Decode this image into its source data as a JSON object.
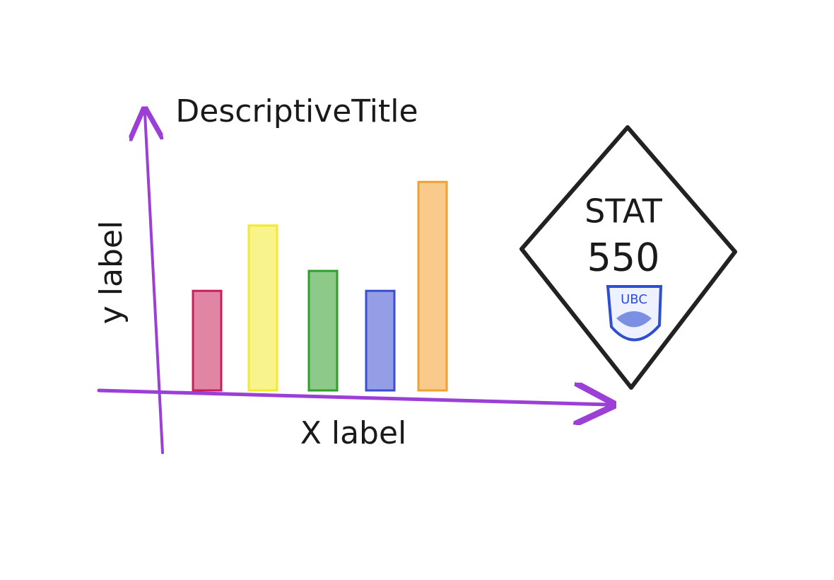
{
  "chart_data": {
    "type": "bar",
    "title": "DescriptiveTitle",
    "x_label": "X label",
    "y_label": "y label",
    "categories": [
      null,
      null,
      null,
      null,
      null
    ],
    "values": [
      160,
      265,
      192,
      160,
      335
    ],
    "colors": [
      "#c8205a",
      "#f2ea2a",
      "#2f9e2a",
      "#3a4fd0",
      "#f2a030"
    ],
    "ylim": [
      0,
      400
    ]
  },
  "logo": {
    "line1": "STAT",
    "line2": "550",
    "badge": "UBC"
  }
}
